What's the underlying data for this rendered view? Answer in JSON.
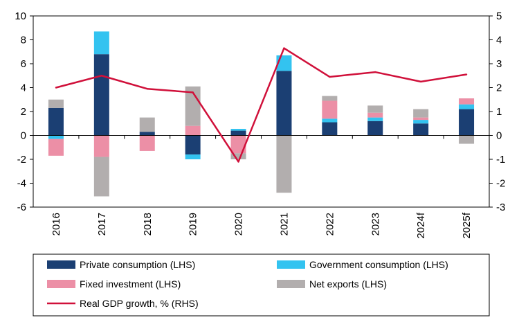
{
  "chart_data": {
    "type": "bar",
    "stacked": true,
    "categories": [
      "2016",
      "2017",
      "2018",
      "2019",
      "2020",
      "2021",
      "2022",
      "2023",
      "2024f",
      "2025f"
    ],
    "series": [
      {
        "name": "Private consumption (LHS)",
        "axis": "left",
        "kind": "bar",
        "color": "#1b3f73",
        "values": [
          2.3,
          6.8,
          0.3,
          -1.6,
          0.4,
          5.4,
          1.1,
          1.2,
          1.0,
          2.2
        ]
      },
      {
        "name": "Government consumption (LHS)",
        "axis": "left",
        "kind": "bar",
        "color": "#33c3f0",
        "values": [
          -0.3,
          1.9,
          0.0,
          -0.4,
          0.15,
          1.3,
          0.3,
          0.3,
          0.3,
          0.4
        ]
      },
      {
        "name": "Fixed investment (LHS)",
        "axis": "left",
        "kind": "bar",
        "color": "#ec8fa6",
        "values": [
          -1.4,
          -1.8,
          -1.3,
          0.8,
          -1.5,
          0.0,
          1.5,
          0.4,
          0.2,
          0.5
        ]
      },
      {
        "name": "Net exports (LHS)",
        "axis": "left",
        "kind": "bar",
        "color": "#b2aeae",
        "values": [
          0.7,
          -3.3,
          1.2,
          3.3,
          -0.5,
          -4.8,
          0.4,
          0.6,
          0.7,
          -0.7
        ]
      },
      {
        "name": "Real GDP growth, % (RHS)",
        "axis": "right",
        "kind": "line",
        "color": "#d0103a",
        "values": [
          2.0,
          2.5,
          1.95,
          1.8,
          -1.1,
          3.65,
          2.45,
          2.65,
          2.25,
          2.55
        ]
      }
    ],
    "left_axis": {
      "ylim": [
        -6,
        10
      ],
      "ticks": [
        "-6",
        "-4",
        "-2",
        "0",
        "2",
        "4",
        "6",
        "8",
        "10"
      ]
    },
    "right_axis": {
      "ylim": [
        -3,
        5
      ],
      "ticks": [
        "-3",
        "-2",
        "-1",
        "0",
        "1",
        "2",
        "3",
        "4",
        "5"
      ]
    },
    "grid": false,
    "legend_position": "bottom"
  }
}
